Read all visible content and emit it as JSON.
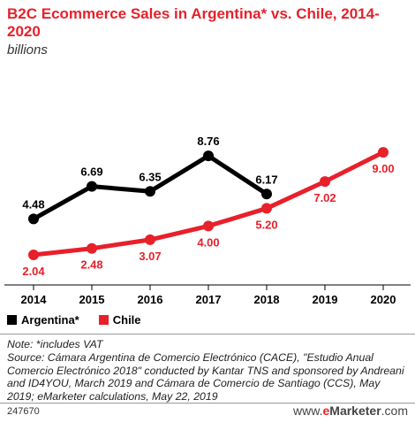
{
  "header": {
    "title": "B2C Ecommerce Sales in Argentina* vs. Chile, 2014-2020",
    "subtitle": "billions"
  },
  "chart_data": {
    "type": "line",
    "title": "B2C Ecommerce Sales in Argentina* vs. Chile, 2014-2020",
    "subtitle": "billions",
    "x": [
      "2014",
      "2015",
      "2016",
      "2017",
      "2018",
      "2019",
      "2020"
    ],
    "series": [
      {
        "name": "Argentina*",
        "color": "#000000",
        "values": [
          4.48,
          6.69,
          6.35,
          8.76,
          6.17,
          null,
          null
        ],
        "labels": [
          "4.48",
          "6.69",
          "6.35",
          "8.76",
          "6.17",
          "",
          ""
        ]
      },
      {
        "name": "Chile",
        "color": "#e8202a",
        "values": [
          2.04,
          2.48,
          3.07,
          4.0,
          5.2,
          7.02,
          9.0
        ],
        "labels": [
          "2.04",
          "2.48",
          "3.07",
          "4.00",
          "5.20",
          "7.02",
          "9.00"
        ]
      }
    ],
    "ylim": [
      0,
      10
    ],
    "grid": false,
    "legend_position": "bottom-left"
  },
  "footer": {
    "note_line": "Note: *includes VAT",
    "source": "Source: Cámara Argentina de Comercio Electrónico (CACE), \"Estudio Anual Comercio Electrónico 2018\" conducted by Kantar TNS and sponsored by Andreani and ID4YOU, March 2019 and Cámara de Comercio de Santiago (CCS), May 2019; eMarketer calculations, May 22, 2019",
    "chart_id": "247670",
    "brand_prefix": "www.",
    "brand_e": "e",
    "brand_name": "Marketer",
    "brand_suffix": ".com"
  }
}
